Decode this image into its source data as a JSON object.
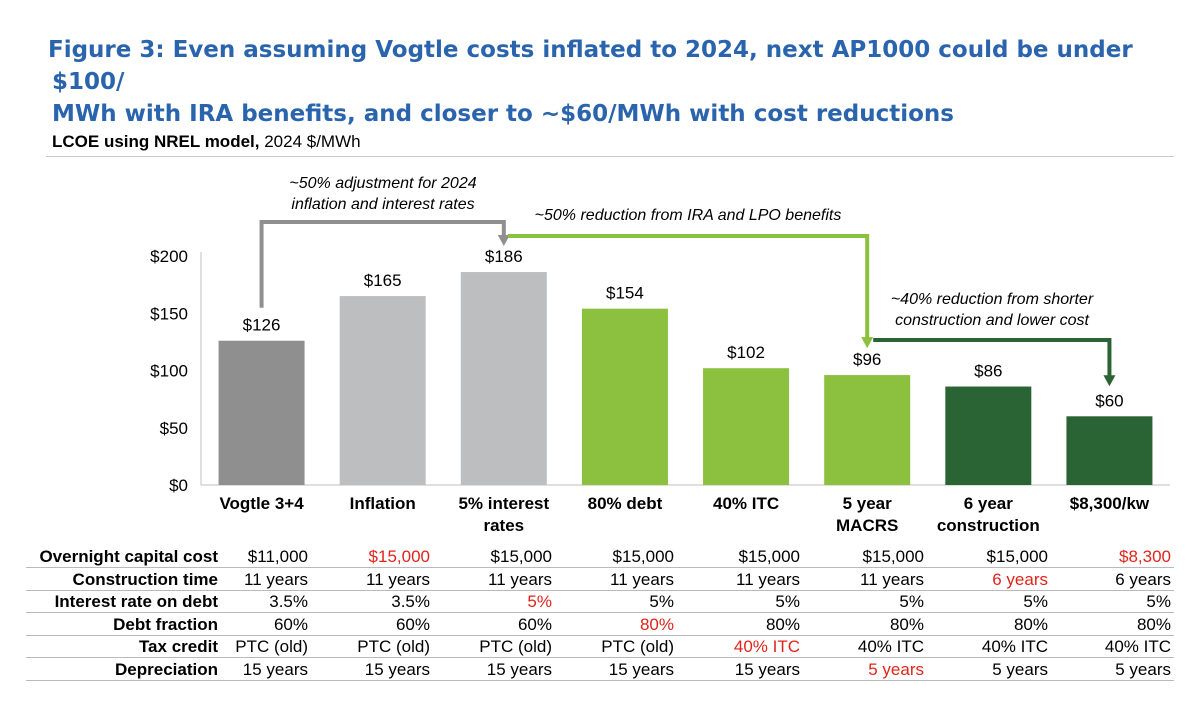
{
  "figure": {
    "title_line1": "Figure 3: Even assuming Vogtle costs inflated to 2024, next AP1000 could be under $100/",
    "title_line2": "MWh with IRA benefits, and closer to ~$60/MWh with cost reductions",
    "subtitle_bold": "LCOE using NREL model,",
    "subtitle_rest": " 2024 $/MWh"
  },
  "colors": {
    "title": "#2a64ad",
    "dark_gray": "#8f8f8f",
    "light_gray": "#bdbec0",
    "light_green": "#8cc03f",
    "dark_green": "#2b6434",
    "red": "#e0241b"
  },
  "chart_data": {
    "type": "bar",
    "title": "LCOE using NREL model, 2024 $/MWh",
    "ylabel": "2024 $/MWh",
    "ylim": [
      0,
      200
    ],
    "yticks": [
      "$0",
      "$50",
      "$100",
      "$150",
      "$200"
    ],
    "ytick_values": [
      0,
      50,
      100,
      150,
      200
    ],
    "categories": [
      [
        "Vogtle 3+4"
      ],
      [
        "Inflation"
      ],
      [
        "5% interest",
        "rates"
      ],
      [
        "80% debt"
      ],
      [
        "40% ITC"
      ],
      [
        "5 year",
        "MACRS"
      ],
      [
        "6 year",
        "construction"
      ],
      [
        "$8,300/kw"
      ]
    ],
    "values": [
      126,
      165,
      186,
      154,
      102,
      96,
      86,
      60
    ],
    "value_labels": [
      "$126",
      "$165",
      "$186",
      "$154",
      "$102",
      "$96",
      "$86",
      "$60"
    ],
    "bar_colors": [
      "dark_gray",
      "light_gray",
      "light_gray",
      "light_green",
      "light_green",
      "light_green",
      "dark_green",
      "dark_green"
    ],
    "annotations": [
      {
        "lines": [
          "~50% adjustment for 2024",
          "inflation and interest rates"
        ],
        "from": 0,
        "to": 2,
        "color": "dark_gray"
      },
      {
        "lines": [
          "~50% reduction from IRA and LPO benefits"
        ],
        "from": 2,
        "to": 5,
        "color": "light_green"
      },
      {
        "lines": [
          "~40% reduction from shorter",
          "construction and lower cost"
        ],
        "from": 5,
        "to": 7,
        "color": "dark_green"
      }
    ]
  },
  "table": {
    "rows": [
      {
        "label": "Overnight capital cost",
        "cells": [
          "$11,000",
          "$15,000",
          "$15,000",
          "$15,000",
          "$15,000",
          "$15,000",
          "$15,000",
          "$8,300"
        ],
        "highlight": [
          1,
          7
        ]
      },
      {
        "label": "Construction time",
        "cells": [
          "11 years",
          "11 years",
          "11 years",
          "11 years",
          "11 years",
          "11 years",
          "6 years",
          "6 years"
        ],
        "highlight": [
          6
        ]
      },
      {
        "label": "Interest rate on debt",
        "cells": [
          "3.5%",
          "3.5%",
          "5%",
          "5%",
          "5%",
          "5%",
          "5%",
          "5%"
        ],
        "highlight": [
          2
        ]
      },
      {
        "label": "Debt fraction",
        "cells": [
          "60%",
          "60%",
          "60%",
          "80%",
          "80%",
          "80%",
          "80%",
          "80%"
        ],
        "highlight": [
          3
        ]
      },
      {
        "label": "Tax credit",
        "cells": [
          "PTC (old)",
          "PTC (old)",
          "PTC (old)",
          "PTC (old)",
          "40% ITC",
          "40% ITC",
          "40% ITC",
          "40% ITC"
        ],
        "highlight": [
          4
        ]
      },
      {
        "label": "Depreciation",
        "cells": [
          "15 years",
          "15 years",
          "15 years",
          "15 years",
          "15 years",
          "5 years",
          "5 years",
          "5 years"
        ],
        "highlight": [
          5
        ]
      }
    ]
  }
}
